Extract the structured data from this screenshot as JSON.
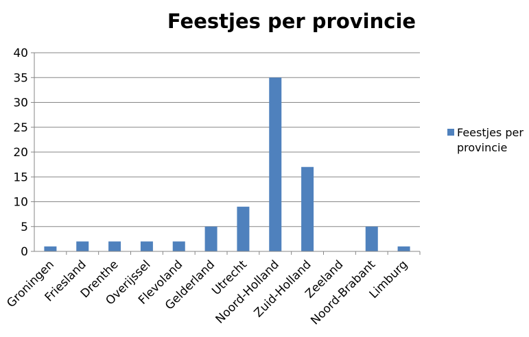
{
  "chart_data": {
    "type": "bar",
    "title": "Feestjes per provincie",
    "categories": [
      "Groningen",
      "Friesland",
      "Drenthe",
      "Overijssel",
      "Flevoland",
      "Gelderland",
      "Utrecht",
      "Noord-Holland",
      "Zuid-Holland",
      "Zeeland",
      "Noord-Brabant",
      "Limburg"
    ],
    "series": [
      {
        "name": "Feestjes per provincie",
        "values": [
          1,
          2,
          2,
          2,
          2,
          5,
          9,
          35,
          17,
          0,
          5,
          1
        ]
      }
    ],
    "ylim": [
      0,
      40
    ],
    "yticks": [
      0,
      5,
      10,
      15,
      20,
      25,
      30,
      35,
      40
    ],
    "grid": true,
    "legend_position": "right",
    "color": "#4f81bd"
  }
}
